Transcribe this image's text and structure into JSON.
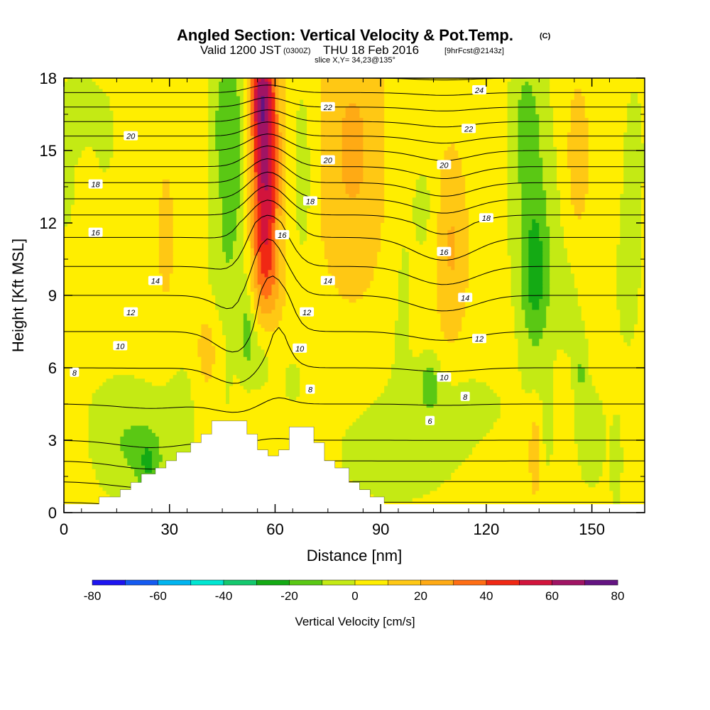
{
  "title": {
    "main": "Angled Section: Vertical Velocity & Pot.Temp.",
    "main_units": "(C)",
    "valid_prefix": "Valid 1200 JST",
    "valid_utc": "(0300Z)",
    "valid_date": "THU 18 Feb 2016",
    "valid_fcst": "[9hrFcst@2143z]",
    "slice": "slice X,Y= 34,23@135°"
  },
  "colors": {
    "bands": [
      "#1e14f0",
      "#145af0",
      "#00b4f0",
      "#00e6d2",
      "#14c86e",
      "#14aa14",
      "#5ac814",
      "#c4ea14",
      "#ffee00",
      "#ffc814",
      "#ffaa14",
      "#ff6e14",
      "#f02814",
      "#d2143c",
      "#a01464",
      "#641482"
    ],
    "terrain": "#ffffff",
    "contour": "#000000"
  },
  "chart_data": {
    "type": "heatmap",
    "xlabel": "Distance [nm]",
    "ylabel": "Height [Kft MSL]",
    "xlim": [
      0,
      165
    ],
    "ylim": [
      0,
      18
    ],
    "xticks": [
      0,
      30,
      60,
      90,
      120,
      150
    ],
    "yticks": [
      0,
      3,
      6,
      9,
      12,
      15,
      18
    ],
    "colorbar": {
      "label": "Vertical Velocity [cm/s]",
      "levels": [
        -80,
        -70,
        -60,
        -50,
        -40,
        -30,
        -20,
        -10,
        0,
        10,
        20,
        30,
        40,
        50,
        60,
        70,
        80
      ],
      "tick_labels": [
        "-80",
        "-60",
        "-40",
        "-20",
        "0",
        "20",
        "40",
        "60",
        "80"
      ],
      "tick_values": [
        -80,
        -60,
        -40,
        -20,
        0,
        20,
        40,
        60,
        80
      ]
    },
    "background_velocity": 5,
    "velocity_features": [
      {
        "x": 48,
        "y": 14.5,
        "sx": 4,
        "sy": 3.5,
        "v": -18
      },
      {
        "x": 46,
        "y": 16.5,
        "sx": 3,
        "sy": 2,
        "v": -10
      },
      {
        "x": 45,
        "y": 9.5,
        "sx": 4,
        "sy": 2,
        "v": -8
      },
      {
        "x": 57,
        "y": 15.5,
        "sx": 2.8,
        "sy": 2.8,
        "v": 40
      },
      {
        "x": 57,
        "y": 12,
        "sx": 2.8,
        "sy": 2.5,
        "v": 30
      },
      {
        "x": 58,
        "y": 9.5,
        "sx": 3,
        "sy": 1.5,
        "v": 12
      },
      {
        "x": 56,
        "y": 17.5,
        "sx": 2.5,
        "sy": 1.5,
        "v": 32
      },
      {
        "x": 68,
        "y": 15.5,
        "sx": 2.5,
        "sy": 2.5,
        "v": -8
      },
      {
        "x": 68,
        "y": 12.5,
        "sx": 2,
        "sy": 2,
        "v": -6
      },
      {
        "x": 82,
        "y": 15,
        "sx": 7,
        "sy": 4,
        "v": 17
      },
      {
        "x": 96,
        "y": 15,
        "sx": 3,
        "sy": 3,
        "v": -6
      },
      {
        "x": 96,
        "y": 8,
        "sx": 3,
        "sy": 3,
        "v": -6
      },
      {
        "x": 103,
        "y": 12.5,
        "sx": 2.5,
        "sy": 2,
        "v": -7
      },
      {
        "x": 110,
        "y": 11,
        "sx": 3.2,
        "sy": 2.8,
        "v": 16
      },
      {
        "x": 133,
        "y": 13,
        "sx": 4.5,
        "sy": 4,
        "v": -15
      },
      {
        "x": 134,
        "y": 9.5,
        "sx": 2.8,
        "sy": 2.2,
        "v": -20
      },
      {
        "x": 131,
        "y": 16.5,
        "sx": 3,
        "sy": 2,
        "v": -10
      },
      {
        "x": 146,
        "y": 14.5,
        "sx": 2.2,
        "sy": 2.2,
        "v": 14
      },
      {
        "x": 4,
        "y": 17,
        "sx": 4,
        "sy": 1.5,
        "v": -8
      },
      {
        "x": 12,
        "y": 15.5,
        "sx": 3,
        "sy": 2,
        "v": -6
      },
      {
        "x": 0,
        "y": 13,
        "sx": 4,
        "sy": 2,
        "v": -6
      },
      {
        "x": 2,
        "y": 7.5,
        "sx": 2,
        "sy": 1.5,
        "v": -6
      },
      {
        "x": 144,
        "y": 9,
        "sx": 4,
        "sy": 3,
        "v": -6
      },
      {
        "x": 162,
        "y": 15,
        "sx": 4,
        "sy": 4,
        "v": -6
      },
      {
        "x": 160,
        "y": 9,
        "sx": 3,
        "sy": 2.5,
        "v": -6
      },
      {
        "x": 29,
        "y": 11.5,
        "sx": 1.5,
        "sy": 1.8,
        "v": 12
      },
      {
        "x": 41,
        "y": 6.5,
        "sx": 2.8,
        "sy": 1.6,
        "v": 13
      },
      {
        "x": 52,
        "y": 7.5,
        "sx": 1.6,
        "sy": 1.3,
        "v": -15
      },
      {
        "x": 56,
        "y": 6.5,
        "sx": 3,
        "sy": 1.2,
        "v": -10
      },
      {
        "x": 65,
        "y": 5.5,
        "sx": 3,
        "sy": 1.2,
        "v": -6
      },
      {
        "x": 45,
        "y": 5,
        "sx": 3,
        "sy": 1.5,
        "v": -6
      },
      {
        "x": 104,
        "y": 5.5,
        "sx": 2,
        "sy": 0.8,
        "v": -15
      },
      {
        "x": 147,
        "y": 5.8,
        "sx": 1,
        "sy": 1,
        "v": -12
      },
      {
        "x": 17,
        "y": 4,
        "sx": 9,
        "sy": 1.4,
        "v": -10
      },
      {
        "x": 22,
        "y": 2,
        "sx": 9,
        "sy": 1.3,
        "v": -12
      },
      {
        "x": 24,
        "y": 2,
        "sx": 2,
        "sy": 0.8,
        "v": -14
      },
      {
        "x": 35,
        "y": 5,
        "sx": 4,
        "sy": 1.5,
        "v": -6
      },
      {
        "x": 95,
        "y": 2.5,
        "sx": 14,
        "sy": 1.7,
        "v": -10
      },
      {
        "x": 112,
        "y": 4.5,
        "sx": 12,
        "sy": 1.2,
        "v": -7
      },
      {
        "x": 137,
        "y": 3,
        "sx": 2,
        "sy": 1.5,
        "v": -6
      },
      {
        "x": 150,
        "y": 3,
        "sx": 4,
        "sy": 2,
        "v": -8
      },
      {
        "x": 157,
        "y": 2,
        "sx": 1,
        "sy": 1.2,
        "v": -14
      },
      {
        "x": 134,
        "y": 2.5,
        "sx": 1.2,
        "sy": 1.2,
        "v": 17
      },
      {
        "x": 0,
        "y": 3.5,
        "sx": 4,
        "sy": 3,
        "v": 6
      }
    ],
    "theta_base": [
      [
        0,
        4.5
      ],
      [
        3,
        8
      ],
      [
        6,
        10
      ],
      [
        9,
        12
      ],
      [
        12,
        14.5
      ],
      [
        15,
        19
      ],
      [
        18,
        24
      ]
    ],
    "theta_perturbations": [
      {
        "x": 58,
        "y": 12,
        "sx": 5,
        "sy": 3.5,
        "dt": -2
      },
      {
        "x": 50,
        "y": 7,
        "sx": 6,
        "sy": 2,
        "dt": 0.7
      },
      {
        "x": 108,
        "y": 12,
        "sx": 8,
        "sy": 3,
        "dt": 0.9
      },
      {
        "x": 62,
        "y": 8,
        "sx": 3,
        "sy": 1.5,
        "dt": -0.5
      },
      {
        "x": 25,
        "y": 2,
        "sx": 10,
        "sy": 1.5,
        "dt": 0.4
      }
    ],
    "theta_levels": [
      3,
      4,
      5,
      6,
      7,
      8,
      9,
      10,
      11,
      12,
      13,
      14,
      15,
      16,
      17,
      18,
      19,
      20,
      21,
      22,
      23,
      24
    ],
    "theta_labels": [
      {
        "text": "24",
        "x": 118,
        "y": 17.5
      },
      {
        "text": "22",
        "x": 75,
        "y": 16.8
      },
      {
        "text": "22",
        "x": 115,
        "y": 15.9
      },
      {
        "text": "20",
        "x": 19,
        "y": 15.6
      },
      {
        "text": "20",
        "x": 75,
        "y": 14.6
      },
      {
        "text": "20",
        "x": 108,
        "y": 14.4
      },
      {
        "text": "18",
        "x": 9,
        "y": 13.6
      },
      {
        "text": "18",
        "x": 70,
        "y": 12.9
      },
      {
        "text": "18",
        "x": 120,
        "y": 12.2
      },
      {
        "text": "16",
        "x": 9,
        "y": 11.6
      },
      {
        "text": "16",
        "x": 62,
        "y": 11.5
      },
      {
        "text": "16",
        "x": 108,
        "y": 10.8
      },
      {
        "text": "14",
        "x": 26,
        "y": 9.6
      },
      {
        "text": "14",
        "x": 75,
        "y": 9.6
      },
      {
        "text": "14",
        "x": 114,
        "y": 8.9
      },
      {
        "text": "12",
        "x": 19,
        "y": 8.3
      },
      {
        "text": "12",
        "x": 69,
        "y": 8.3
      },
      {
        "text": "12",
        "x": 118,
        "y": 7.2
      },
      {
        "text": "10",
        "x": 16,
        "y": 6.9
      },
      {
        "text": "10",
        "x": 67,
        "y": 6.8
      },
      {
        "text": "10",
        "x": 108,
        "y": 5.6
      },
      {
        "text": "8",
        "x": 3,
        "y": 5.8
      },
      {
        "text": "8",
        "x": 70,
        "y": 5.1
      },
      {
        "text": "8",
        "x": 114,
        "y": 4.8
      },
      {
        "text": "6",
        "x": 104,
        "y": 3.8
      }
    ],
    "terrain_profile": [
      [
        10,
        0.4
      ],
      [
        10,
        0.65
      ],
      [
        16,
        0.65
      ],
      [
        16,
        0.95
      ],
      [
        19,
        0.95
      ],
      [
        19,
        1.25
      ],
      [
        22,
        1.25
      ],
      [
        22,
        1.6
      ],
      [
        26,
        1.6
      ],
      [
        26,
        1.85
      ],
      [
        29,
        1.85
      ],
      [
        29,
        2.15
      ],
      [
        32,
        2.15
      ],
      [
        32,
        2.5
      ],
      [
        36,
        2.5
      ],
      [
        36,
        2.9
      ],
      [
        39,
        2.9
      ],
      [
        39,
        3.25
      ],
      [
        42,
        3.25
      ],
      [
        42,
        3.8
      ],
      [
        52,
        3.8
      ],
      [
        52,
        3.25
      ],
      [
        55,
        3.25
      ],
      [
        55,
        2.6
      ],
      [
        58,
        2.6
      ],
      [
        58,
        2.35
      ],
      [
        61,
        2.35
      ],
      [
        61,
        2.6
      ],
      [
        64,
        2.6
      ],
      [
        64,
        3.55
      ],
      [
        67,
        3.55
      ],
      [
        67,
        3.55
      ],
      [
        71,
        3.55
      ],
      [
        71,
        2.9
      ],
      [
        74,
        2.9
      ],
      [
        74,
        2.15
      ],
      [
        77,
        2.15
      ],
      [
        77,
        1.85
      ],
      [
        81,
        1.85
      ],
      [
        81,
        1.25
      ],
      [
        84,
        1.25
      ],
      [
        84,
        0.95
      ],
      [
        87,
        0.95
      ],
      [
        87,
        0.65
      ],
      [
        91,
        0.65
      ],
      [
        91,
        0.4
      ]
    ]
  }
}
